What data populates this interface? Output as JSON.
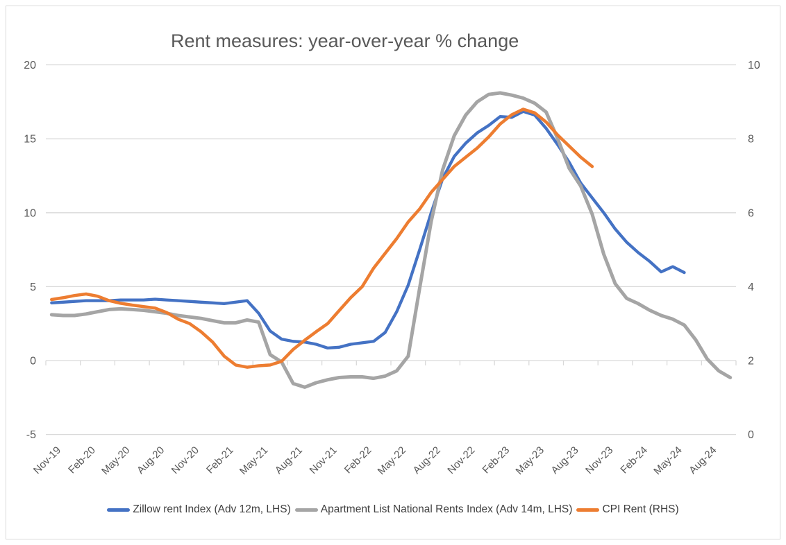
{
  "title": "Rent measures: year-over-year % change",
  "colors": {
    "grid": "#D9D9D9",
    "axis_text": "#595959",
    "title_text": "#595959",
    "legend_text": "#404040"
  },
  "chart_data": {
    "type": "line",
    "title": "Rent measures: year-over-year % change",
    "grid": true,
    "legend_position": "bottom",
    "categories": [
      "Nov-19",
      "Dec-19",
      "Jan-20",
      "Feb-20",
      "Mar-20",
      "Apr-20",
      "May-20",
      "Jun-20",
      "Jul-20",
      "Aug-20",
      "Sep-20",
      "Oct-20",
      "Nov-20",
      "Dec-20",
      "Jan-21",
      "Feb-21",
      "Mar-21",
      "Apr-21",
      "May-21",
      "Jun-21",
      "Jul-21",
      "Aug-21",
      "Sep-21",
      "Oct-21",
      "Nov-21",
      "Dec-21",
      "Jan-22",
      "Feb-22",
      "Mar-22",
      "Apr-22",
      "May-22",
      "Jun-22",
      "Jul-22",
      "Aug-22",
      "Sep-22",
      "Oct-22",
      "Nov-22",
      "Dec-22",
      "Jan-23",
      "Feb-23",
      "Mar-23",
      "Apr-23",
      "May-23",
      "Jun-23",
      "Jul-23",
      "Aug-23",
      "Sep-23",
      "Oct-23",
      "Nov-23",
      "Dec-23",
      "Jan-24",
      "Feb-24",
      "Mar-24",
      "Apr-24",
      "May-24",
      "Jun-24",
      "Jul-24",
      "Aug-24",
      "Sep-24",
      "Oct-24"
    ],
    "x_tick_labels": [
      "Nov-19",
      "Feb-20",
      "May-20",
      "Aug-20",
      "Nov-20",
      "Feb-21",
      "May-21",
      "Aug-21",
      "Nov-21",
      "Feb-22",
      "May-22",
      "Aug-22",
      "Nov-22",
      "Feb-23",
      "May-23",
      "Aug-23",
      "Nov-23",
      "Feb-24",
      "May-24",
      "Aug-24"
    ],
    "left_axis": {
      "ticks": [
        20,
        15,
        10,
        5,
        0,
        -5
      ],
      "range": [
        -5,
        20
      ]
    },
    "right_axis": {
      "ticks": [
        10,
        8,
        6,
        4,
        2,
        0
      ],
      "range": [
        0,
        10
      ]
    },
    "series": [
      {
        "name": "Zillow rent Index (Adv 12m, LHS)",
        "axis": "left",
        "color": "#4472C4",
        "stroke_width": 4.3,
        "values": [
          3.9,
          3.95,
          4.0,
          4.05,
          4.05,
          4.05,
          4.1,
          4.1,
          4.1,
          4.15,
          4.1,
          4.05,
          4.0,
          3.95,
          3.9,
          3.85,
          3.95,
          4.05,
          3.2,
          2.0,
          1.45,
          1.3,
          1.25,
          1.1,
          0.85,
          0.9,
          1.1,
          1.2,
          1.3,
          1.9,
          3.3,
          5.1,
          7.5,
          10.0,
          12.3,
          13.8,
          14.7,
          15.4,
          15.9,
          16.5,
          16.45,
          16.85,
          16.6,
          15.7,
          14.6,
          13.4,
          12.0,
          11.0,
          10.0,
          8.9,
          8.0,
          7.3,
          6.7,
          6.0,
          6.35,
          5.95,
          null,
          null,
          null,
          null
        ]
      },
      {
        "name": "Apartment List National Rents Index (Adv 14m, LHS)",
        "axis": "left",
        "color": "#A5A5A5",
        "stroke_width": 5,
        "values": [
          3.1,
          3.05,
          3.05,
          3.15,
          3.3,
          3.45,
          3.5,
          3.45,
          3.4,
          3.3,
          3.2,
          3.05,
          2.95,
          2.85,
          2.7,
          2.55,
          2.55,
          2.75,
          2.6,
          0.4,
          -0.1,
          -1.55,
          -1.8,
          -1.5,
          -1.3,
          -1.15,
          -1.1,
          -1.1,
          -1.2,
          -1.05,
          -0.7,
          0.3,
          4.9,
          9.4,
          12.9,
          15.2,
          16.6,
          17.5,
          18.0,
          18.1,
          17.95,
          17.75,
          17.4,
          16.8,
          15.0,
          13.0,
          11.8,
          9.9,
          7.2,
          5.2,
          4.2,
          3.85,
          3.4,
          3.05,
          2.8,
          2.4,
          1.4,
          0.1,
          -0.7,
          -1.15
        ]
      },
      {
        "name": "CPI Rent (RHS)",
        "axis": "right",
        "color": "#ED7D31",
        "stroke_width": 4.5,
        "values": [
          3.65,
          3.7,
          3.76,
          3.8,
          3.74,
          3.62,
          3.55,
          3.5,
          3.46,
          3.42,
          3.3,
          3.12,
          3.0,
          2.78,
          2.5,
          2.12,
          1.88,
          1.82,
          1.86,
          1.88,
          1.98,
          2.3,
          2.55,
          2.78,
          3.0,
          3.35,
          3.7,
          4.0,
          4.5,
          4.9,
          5.3,
          5.75,
          6.1,
          6.55,
          6.9,
          7.25,
          7.5,
          7.75,
          8.05,
          8.4,
          8.65,
          8.8,
          8.7,
          8.45,
          8.1,
          7.8,
          7.5,
          7.25,
          null,
          null,
          null,
          null,
          null,
          null,
          null,
          null,
          null,
          null,
          null,
          null
        ]
      }
    ]
  },
  "legend": {
    "items": [
      {
        "label": "Zillow rent Index (Adv 12m, LHS)"
      },
      {
        "label": "Apartment List National Rents Index (Adv 14m, LHS)"
      },
      {
        "label": "CPI Rent (RHS)"
      }
    ]
  }
}
